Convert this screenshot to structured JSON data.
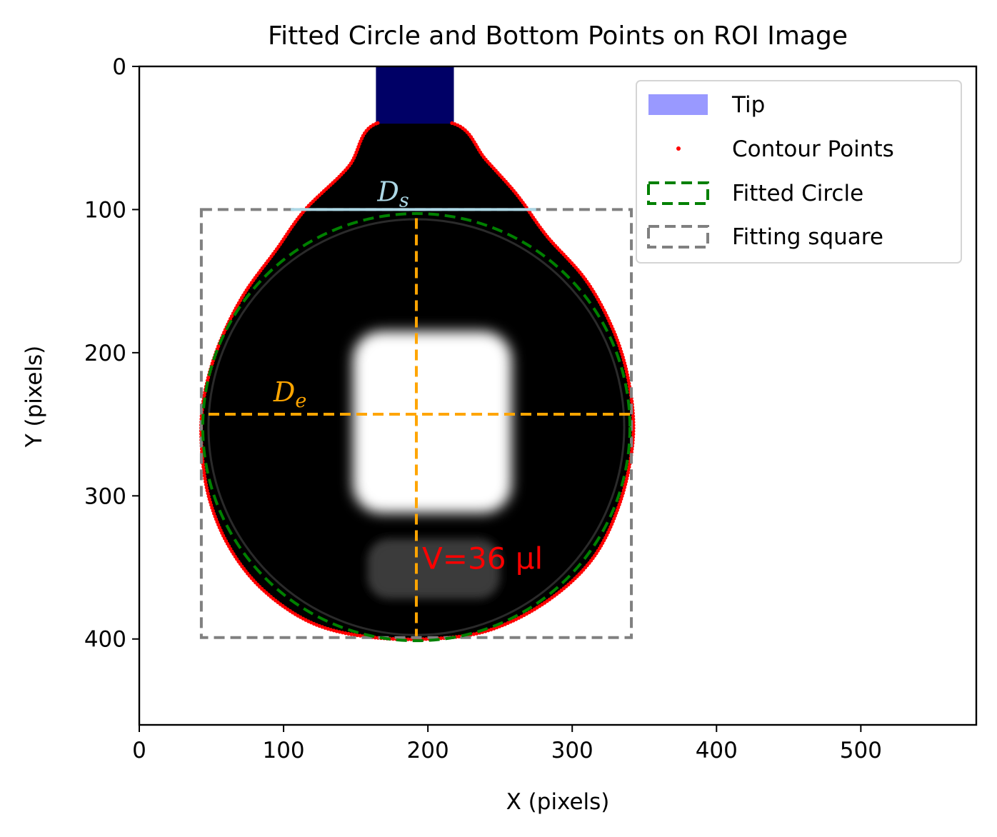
{
  "chart_data": {
    "type": "scatter",
    "title": "Fitted Circle and Bottom Points on ROI Image",
    "xlabel": "X (pixels)",
    "ylabel": "Y (pixels)",
    "xlim": [
      0,
      580
    ],
    "ylim": [
      460,
      0
    ],
    "y_inverted": true,
    "xticks": [
      0,
      100,
      200,
      300,
      400,
      500
    ],
    "yticks": [
      0,
      100,
      200,
      300,
      400
    ],
    "grid": false,
    "legend_position": "upper right",
    "legend": [
      {
        "label": "Tip",
        "kind": "patch",
        "color": "#9999ff"
      },
      {
        "label": "Contour Points",
        "kind": "marker",
        "color": "#ff0000"
      },
      {
        "label": "Fitted Circle",
        "kind": "dashed-box",
        "color": "#008000"
      },
      {
        "label": "Fitting square",
        "kind": "dashed-box",
        "color": "#808080"
      }
    ],
    "tip": {
      "x": [
        164,
        218
      ],
      "y": [
        0,
        40
      ],
      "color": "#000066"
    },
    "drop_image": {
      "neck_top_y": 40,
      "neck_left_x": 164,
      "neck_right_x": 218,
      "bright_spot": {
        "x": [
          148,
          258
        ],
        "y": [
          185,
          312
        ]
      },
      "reflection": {
        "x": [
          158,
          250
        ],
        "y": [
          330,
          372
        ]
      }
    },
    "contour_points": {
      "color": "#ff0000",
      "samples": [
        {
          "x": 164,
          "y": 40
        },
        {
          "x": 145,
          "y": 70
        },
        {
          "x": 115,
          "y": 100
        },
        {
          "x": 95,
          "y": 128
        },
        {
          "x": 72,
          "y": 160
        },
        {
          "x": 55,
          "y": 195
        },
        {
          "x": 45,
          "y": 230
        },
        {
          "x": 43,
          "y": 262
        },
        {
          "x": 48,
          "y": 300
        },
        {
          "x": 62,
          "y": 335
        },
        {
          "x": 85,
          "y": 365
        },
        {
          "x": 118,
          "y": 388
        },
        {
          "x": 155,
          "y": 398
        },
        {
          "x": 200,
          "y": 400
        },
        {
          "x": 242,
          "y": 394
        },
        {
          "x": 282,
          "y": 374
        },
        {
          "x": 314,
          "y": 344
        },
        {
          "x": 333,
          "y": 305
        },
        {
          "x": 342,
          "y": 262
        },
        {
          "x": 340,
          "y": 225
        },
        {
          "x": 330,
          "y": 188
        },
        {
          "x": 310,
          "y": 150
        },
        {
          "x": 282,
          "y": 118
        },
        {
          "x": 262,
          "y": 90
        },
        {
          "x": 240,
          "y": 65
        },
        {
          "x": 218,
          "y": 40
        }
      ]
    },
    "fitted_circle": {
      "cx": 192,
      "cy": 252,
      "r": 148,
      "color": "#008000"
    },
    "fitting_square": {
      "x": [
        43,
        341
      ],
      "y": [
        100,
        399
      ],
      "color": "#808080"
    },
    "Ds_line": {
      "x": [
        105,
        275
      ],
      "y": 100,
      "color": "#add8e6",
      "label": "D",
      "subscript": "s"
    },
    "De_line": {
      "x": [
        48,
        340
      ],
      "y": 243,
      "color": "#ffa500",
      "label": "D",
      "subscript": "e"
    },
    "vertical_line": {
      "x": 192,
      "y": [
        106,
        398
      ],
      "color": "#ffa500"
    },
    "volume_annotation": {
      "text": "V=36 µl",
      "x": 196,
      "y": 345,
      "color": "#ff0000"
    }
  }
}
